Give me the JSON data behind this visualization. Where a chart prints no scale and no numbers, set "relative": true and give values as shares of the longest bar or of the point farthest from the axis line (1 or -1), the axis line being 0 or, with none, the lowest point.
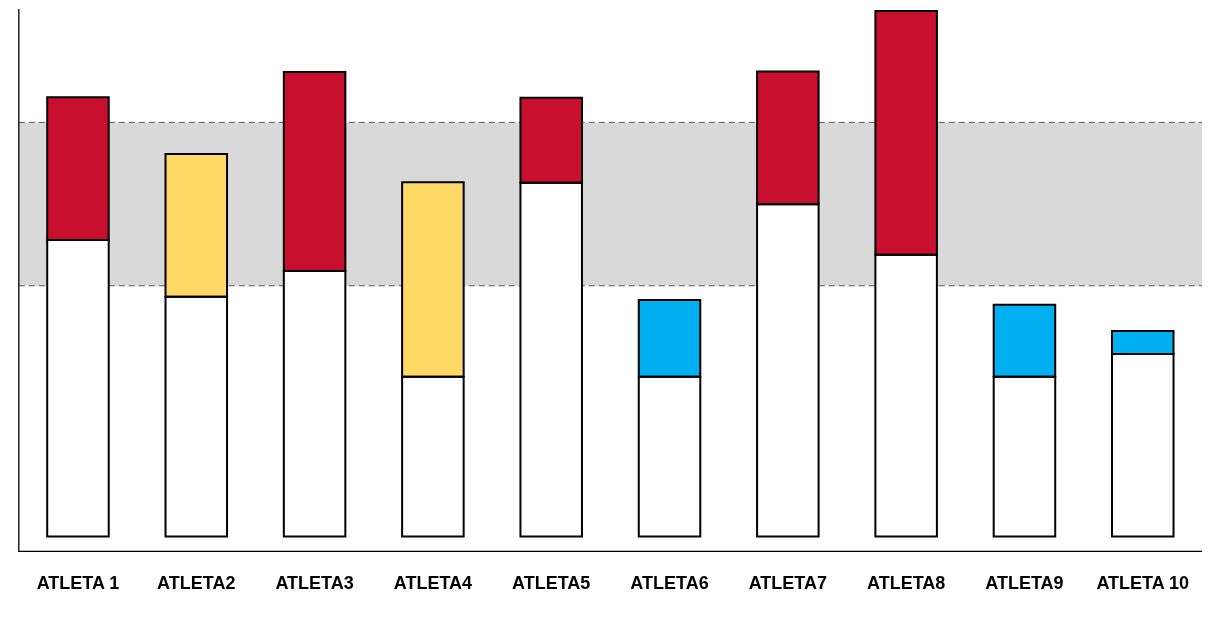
{
  "chart_data": {
    "type": "bar",
    "stacked": true,
    "relative": true,
    "categories": [
      "ATLETA 1",
      "ATLETA2",
      "ATLETA3",
      "ATLETA4",
      "ATLETA5",
      "ATLETA6",
      "ATLETA7",
      "ATLETA8",
      "ATLETA9",
      "ATLETA 10"
    ],
    "series": [
      {
        "color": "#ffffff",
        "values": [
          0.564,
          0.456,
          0.505,
          0.304,
          0.673,
          0.304,
          0.632,
          0.536,
          0.304,
          0.347
        ]
      },
      {
        "colors": [
          "#c8102e",
          "#ffd966",
          "#c8102e",
          "#ffd966",
          "#c8102e",
          "#00b0f0",
          "#c8102e",
          "#c8102e",
          "#00b0f0",
          "#00b0f0"
        ],
        "values": [
          0.272,
          0.272,
          0.379,
          0.37,
          0.162,
          0.146,
          0.253,
          0.464,
          0.137,
          0.044
        ]
      }
    ],
    "bands": [
      {
        "axis": "y",
        "from": 0.477,
        "to": 0.788,
        "color": "#d9d9d9"
      }
    ],
    "ref_lines": [
      {
        "axis": "y",
        "value": 0.477,
        "color": "#555555",
        "line_style": "dashed"
      },
      {
        "axis": "y",
        "value": 0.788,
        "color": "#555555",
        "line_style": "dashed"
      }
    ],
    "grid": false,
    "legend": false
  }
}
